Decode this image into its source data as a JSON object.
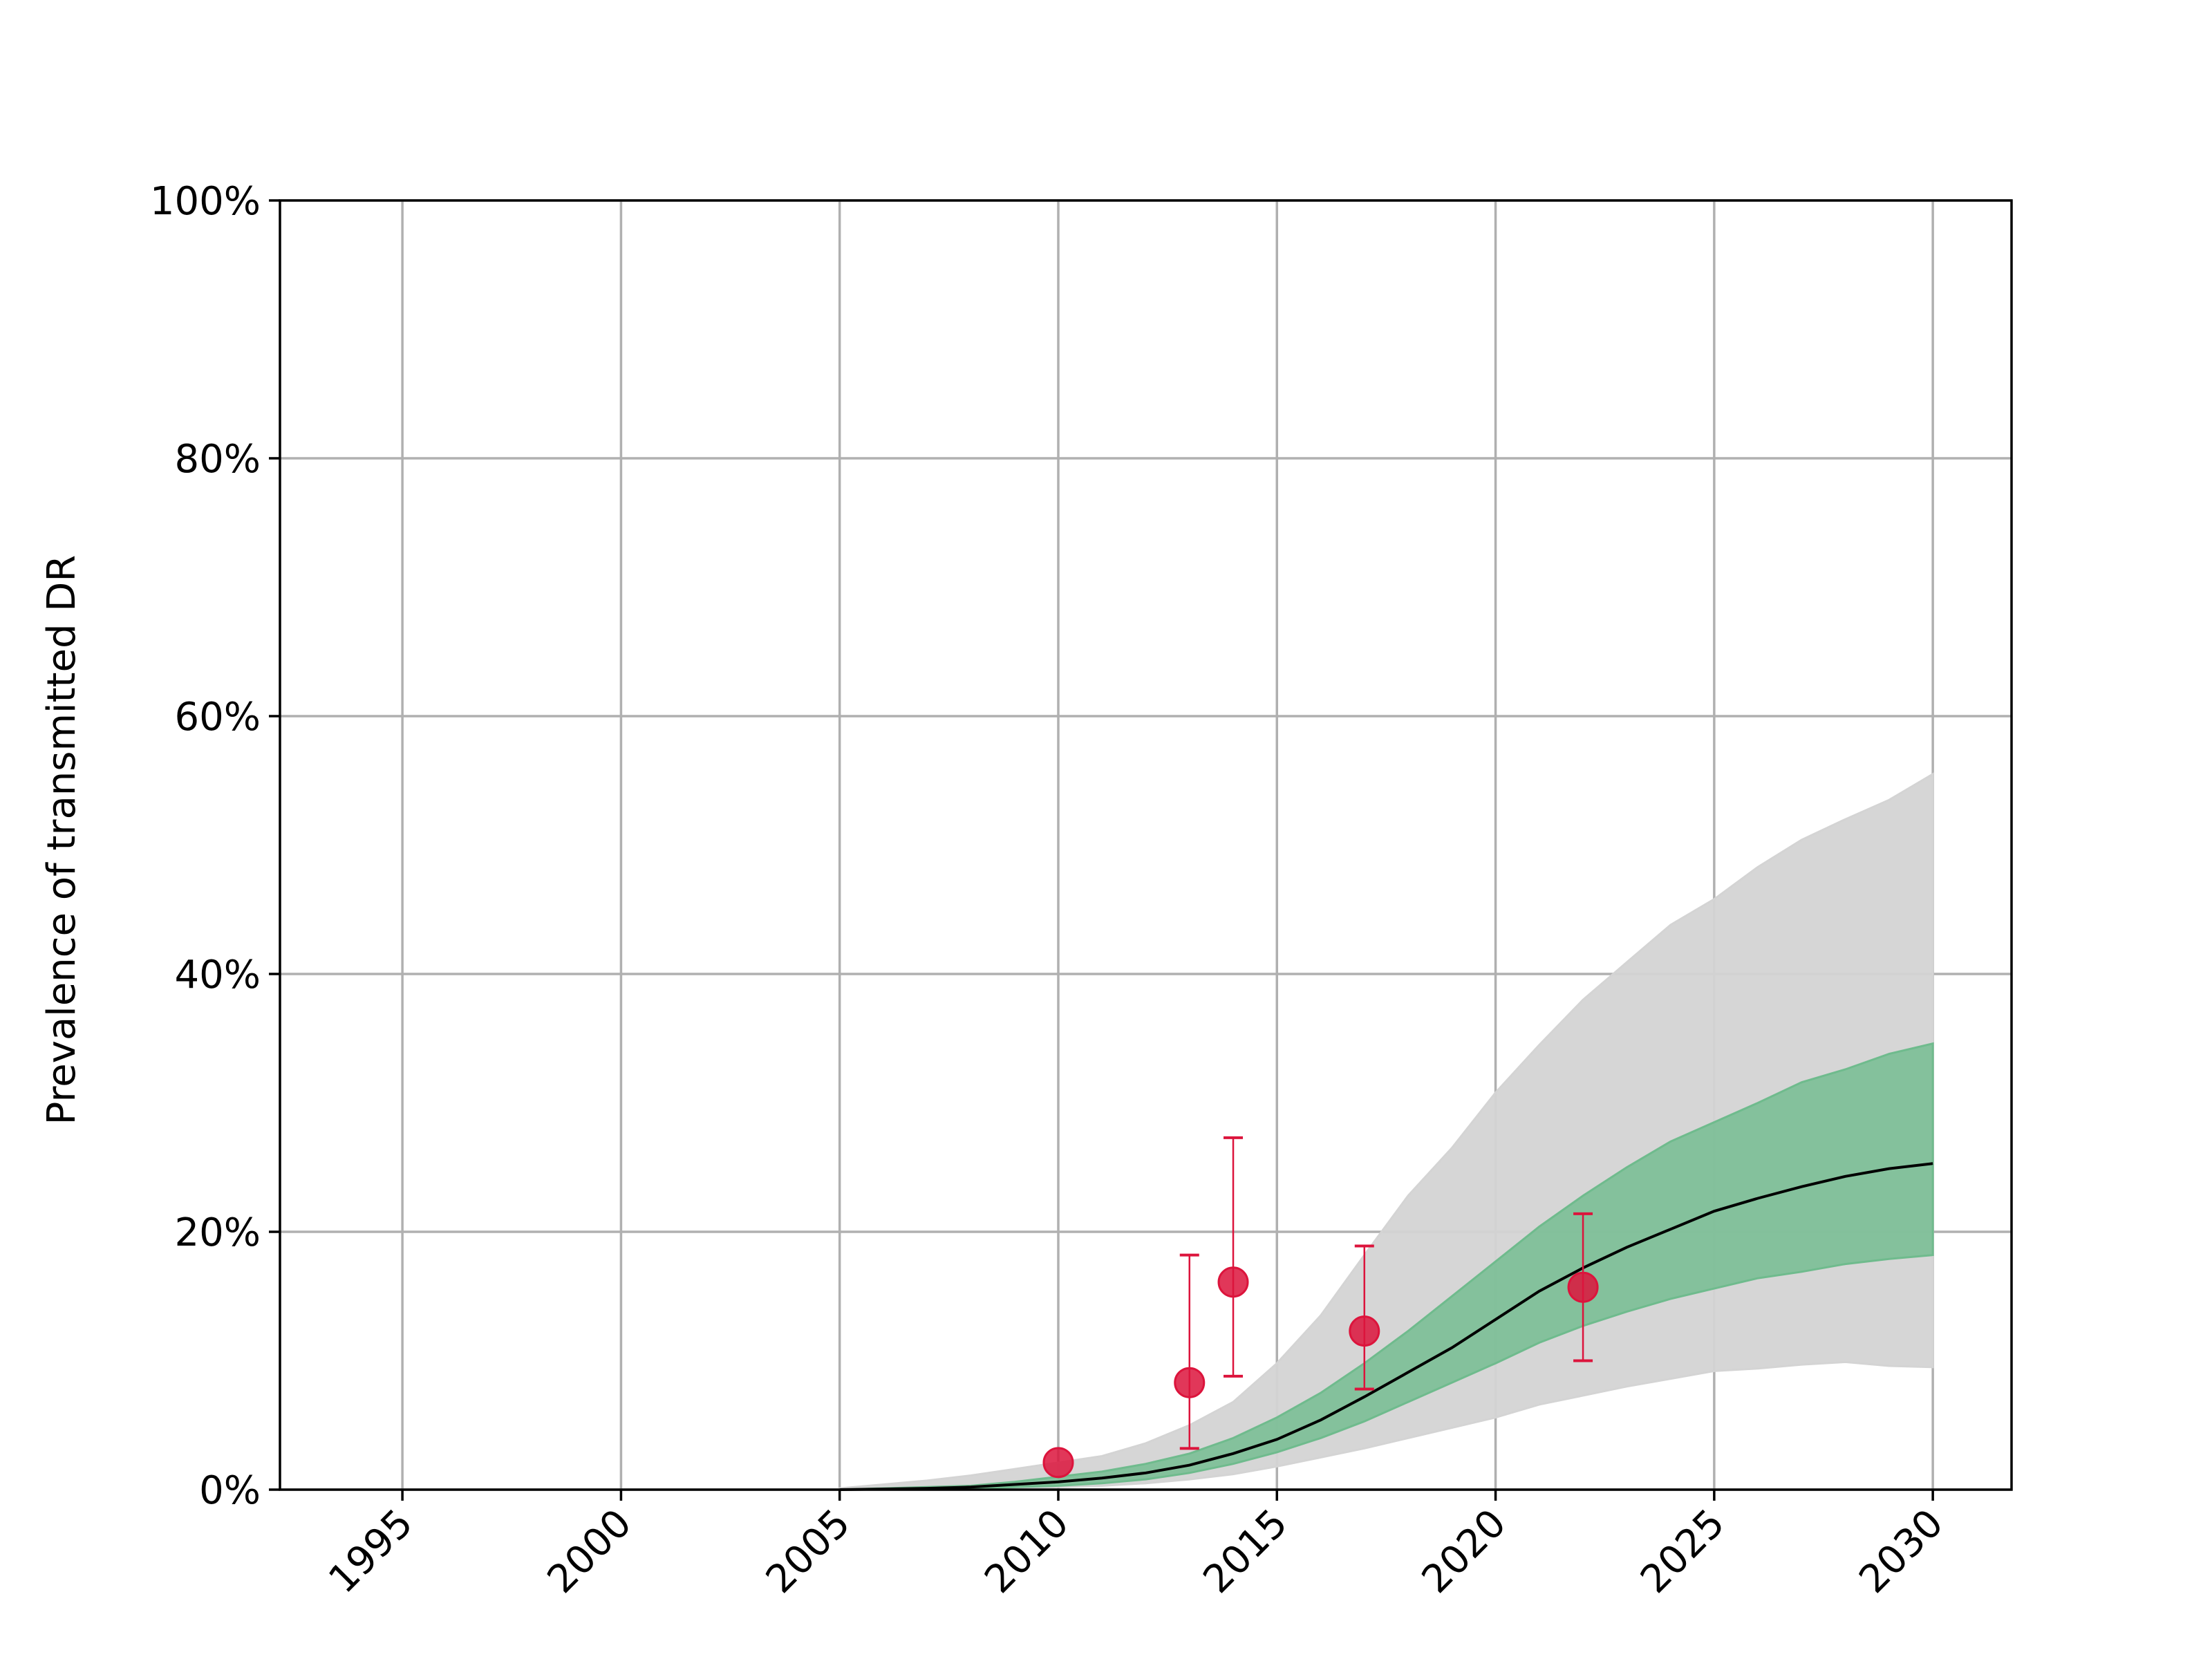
{
  "chart_data": {
    "type": "line",
    "title": "",
    "xlabel": "",
    "ylabel": "Prevalence of transmitted DR",
    "xlim": [
      1992.2,
      2031.8
    ],
    "ylim": [
      0,
      100
    ],
    "x_ticks": [
      1995,
      2000,
      2005,
      2010,
      2015,
      2020,
      2025,
      2030
    ],
    "x_tick_labels": [
      "1995",
      "2000",
      "2005",
      "2010",
      "2015",
      "2020",
      "2025",
      "2030"
    ],
    "y_ticks": [
      0,
      20,
      40,
      60,
      80,
      100
    ],
    "y_tick_labels": [
      "0%",
      "20%",
      "40%",
      "60%",
      "80%",
      "100%"
    ],
    "x_tick_rotation_deg": 45,
    "grid": true,
    "legend": "none",
    "series": [
      {
        "kind": "band",
        "color": "#d4d4d4",
        "x": [
          2005,
          2006,
          2007,
          2008,
          2009,
          2010,
          2011,
          2012,
          2013,
          2014,
          2015,
          2016,
          2017,
          2018,
          2019,
          2020,
          2021,
          2022,
          2023,
          2024,
          2025,
          2026,
          2027,
          2028,
          2029,
          2030
        ],
        "lower": [
          0,
          0,
          0,
          0,
          0.1,
          0.2,
          0.3,
          0.5,
          0.8,
          1.2,
          1.8,
          2.5,
          3.2,
          4.0,
          4.8,
          5.6,
          6.6,
          7.3,
          8.0,
          8.6,
          9.2,
          9.4,
          9.7,
          9.9,
          9.6,
          9.5
        ],
        "upper": [
          0.1,
          0.4,
          0.7,
          1.1,
          1.6,
          2.1,
          2.6,
          3.6,
          5.0,
          6.8,
          9.8,
          13.5,
          18.2,
          22.8,
          26.5,
          30.8,
          34.5,
          38.0,
          40.9,
          43.8,
          45.8,
          48.3,
          50.4,
          52.0,
          53.5,
          55.5
        ]
      },
      {
        "kind": "band",
        "color": "#6fbb8d",
        "x": [
          2005,
          2006,
          2007,
          2008,
          2009,
          2010,
          2011,
          2012,
          2013,
          2014,
          2015,
          2016,
          2017,
          2018,
          2019,
          2020,
          2021,
          2022,
          2023,
          2024,
          2025,
          2026,
          2027,
          2028,
          2029,
          2030
        ],
        "lower": [
          0,
          0,
          0,
          0.1,
          0.2,
          0.3,
          0.5,
          0.8,
          1.3,
          2.0,
          2.9,
          4.0,
          5.3,
          6.8,
          8.3,
          9.8,
          11.4,
          12.7,
          13.8,
          14.8,
          15.6,
          16.4,
          16.9,
          17.5,
          17.9,
          18.2
        ],
        "upper": [
          0,
          0.1,
          0.2,
          0.3,
          0.6,
          1.0,
          1.4,
          2.0,
          2.8,
          4.0,
          5.6,
          7.5,
          9.8,
          12.3,
          15.0,
          17.7,
          20.4,
          22.8,
          25.0,
          27.0,
          28.5,
          30.0,
          31.6,
          32.6,
          33.8,
          34.6
        ]
      },
      {
        "kind": "line",
        "color": "#000000",
        "x": [
          2005,
          2006,
          2007,
          2008,
          2009,
          2010,
          2011,
          2012,
          2013,
          2014,
          2015,
          2016,
          2017,
          2018,
          2019,
          2020,
          2021,
          2022,
          2023,
          2024,
          2025,
          2026,
          2027,
          2028,
          2029,
          2030
        ],
        "y": [
          0,
          0.05,
          0.1,
          0.2,
          0.4,
          0.6,
          0.9,
          1.3,
          1.9,
          2.8,
          3.9,
          5.4,
          7.2,
          9.1,
          11.0,
          13.2,
          15.4,
          17.2,
          18.8,
          20.2,
          21.6,
          22.6,
          23.5,
          24.3,
          24.9,
          25.3
        ]
      },
      {
        "kind": "points",
        "color": "#dc143c",
        "x": [
          2010,
          2013,
          2014,
          2017,
          2022
        ],
        "y": [
          2.1,
          8.3,
          16.1,
          12.3,
          15.7
        ],
        "err_low": [
          null,
          3.2,
          8.8,
          7.8,
          10.0
        ],
        "err_high": [
          null,
          18.2,
          27.3,
          18.9,
          21.4
        ]
      }
    ]
  }
}
